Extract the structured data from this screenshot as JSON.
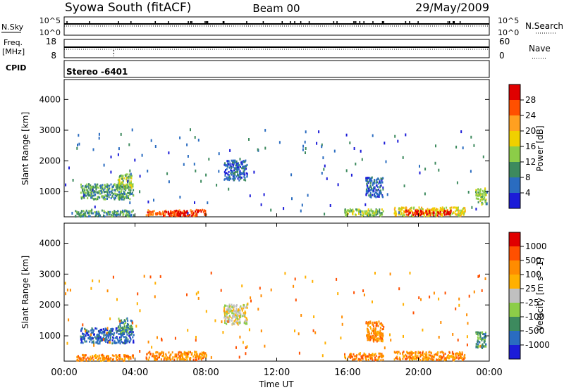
{
  "header": {
    "station": "Syowa South (fitACF)",
    "beam": "Beam 00",
    "date": "29/May/2009",
    "stereo": "Stereo -6401"
  },
  "aux_panels": {
    "nsky_label": "N.Sky",
    "nsearch_label": "N.Search",
    "nsearch_style": "dotted",
    "nsky_ticks": [
      "10^5",
      "10^0"
    ],
    "nsearch_ticks": [
      "10^5",
      "10^0"
    ],
    "freq_label": "Freq.",
    "freq_unit": "[MHz]",
    "freq_ticks": [
      "18",
      "8"
    ],
    "nave_label": "Nave",
    "nave_style": "dotted",
    "nave_ticks": [
      "60",
      "0"
    ],
    "cpid_label": "CPID"
  },
  "x_axis": {
    "label": "Time UT",
    "ticks": [
      "00:00",
      "04:00",
      "08:00",
      "12:00",
      "16:00",
      "20:00",
      "00:00"
    ],
    "hours": [
      0,
      4,
      8,
      12,
      16,
      20,
      24
    ]
  },
  "chart_data": [
    {
      "type": "heatmap",
      "name": "power",
      "ylabel": "Slant Range [km]",
      "xlim_hours": [
        0,
        24
      ],
      "ylim_km": [
        180,
        4650
      ],
      "yticks": [
        1000,
        2000,
        3000,
        4000
      ],
      "colorbar": {
        "label": "Power [dB]",
        "ticks": [
          "4",
          "8",
          "12",
          "16",
          "20",
          "24",
          "28"
        ],
        "colors": [
          "#1c1cd8",
          "#2a6cc0",
          "#3d8a5e",
          "#8ccd48",
          "#f0d000",
          "#ffa020",
          "#ff5000",
          "#e00000"
        ]
      },
      "regions": [
        {
          "t0": 0.6,
          "t1": 3.9,
          "r0": 220,
          "r1": 420,
          "level": 2
        },
        {
          "t0": 4.6,
          "t1": 8.0,
          "r0": 240,
          "r1": 440,
          "level": 6
        },
        {
          "t0": 5.8,
          "t1": 6.9,
          "r0": 250,
          "r1": 400,
          "level": 7
        },
        {
          "t0": 0.9,
          "t1": 3.9,
          "r0": 780,
          "r1": 1280,
          "level": 2
        },
        {
          "t0": 3.0,
          "t1": 3.8,
          "r0": 1150,
          "r1": 1600,
          "level": 3
        },
        {
          "t0": 9.0,
          "t1": 10.3,
          "r0": 1400,
          "r1": 2050,
          "level": 1
        },
        {
          "t0": 15.8,
          "t1": 18.0,
          "r0": 240,
          "r1": 460,
          "level": 3
        },
        {
          "t0": 17.0,
          "t1": 18.0,
          "r0": 850,
          "r1": 1500,
          "level": 1
        },
        {
          "t0": 18.6,
          "t1": 22.6,
          "r0": 240,
          "r1": 520,
          "level": 4
        },
        {
          "t0": 19.2,
          "t1": 21.8,
          "r0": 260,
          "r1": 420,
          "level": 7
        },
        {
          "t0": 23.2,
          "t1": 23.8,
          "r0": 600,
          "r1": 1150,
          "level": 3
        }
      ]
    },
    {
      "type": "heatmap",
      "name": "velocity",
      "ylabel": "Slant Range [km]",
      "xlim_hours": [
        0,
        24
      ],
      "ylim_km": [
        180,
        4650
      ],
      "yticks": [
        1000,
        2000,
        3000,
        4000
      ],
      "colorbar": {
        "label": "Velocity [m s^-1]",
        "ticks": [
          "1000",
          "500",
          "100",
          "25",
          "-25",
          "-100",
          "-500",
          "-1000"
        ],
        "colors": [
          "#1c1cd8",
          "#2a6cc0",
          "#3d8a5e",
          "#8ccd48",
          "#c0c0c0",
          "#ffb000",
          "#ff8c00",
          "#ff5000",
          "#e00000"
        ]
      },
      "regions": [
        {
          "t0": 0.6,
          "t1": 3.9,
          "r0": 220,
          "r1": 420,
          "level": 6
        },
        {
          "t0": 4.6,
          "t1": 8.0,
          "r0": 240,
          "r1": 520,
          "level": 6
        },
        {
          "t0": 0.9,
          "t1": 3.9,
          "r0": 780,
          "r1": 1280,
          "level": 1
        },
        {
          "t0": 3.0,
          "t1": 3.8,
          "r0": 1150,
          "r1": 1600,
          "level": 2
        },
        {
          "t0": 9.0,
          "t1": 10.3,
          "r0": 1400,
          "r1": 2050,
          "level": 4
        },
        {
          "t0": 15.8,
          "t1": 18.0,
          "r0": 240,
          "r1": 460,
          "level": 6
        },
        {
          "t0": 17.0,
          "t1": 18.0,
          "r0": 850,
          "r1": 1500,
          "level": 6
        },
        {
          "t0": 18.6,
          "t1": 22.6,
          "r0": 240,
          "r1": 520,
          "level": 6
        },
        {
          "t0": 23.2,
          "t1": 23.8,
          "r0": 600,
          "r1": 1150,
          "level": 2
        }
      ]
    }
  ]
}
